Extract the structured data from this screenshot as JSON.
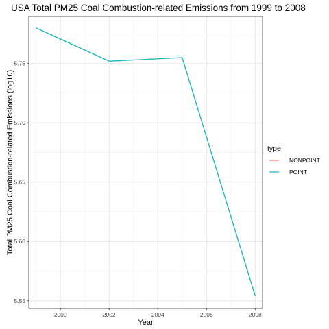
{
  "chart_data": {
    "type": "line",
    "title": "USA Total PM25 Coal Combustion-related Emissions from 1999 to 2008",
    "xlabel": "Year",
    "ylabel": "Total PM25 Coal Combustion-related Emissions (log10)",
    "xlim": [
      1998.7,
      2008.3
    ],
    "ylim": [
      5.5435,
      5.7897
    ],
    "x_ticks": [
      2000,
      2002,
      2004,
      2006,
      2008
    ],
    "y_ticks": [
      5.55,
      5.6,
      5.65,
      5.7,
      5.75
    ],
    "y_tick_labels": [
      "5.55",
      "5.60",
      "5.65",
      "5.70",
      "5.75"
    ],
    "x": [
      1999,
      2002,
      2005,
      2008
    ],
    "series": [
      {
        "name": "NONPOINT",
        "color": "#F8766D",
        "values": [
          5.78,
          5.752,
          5.755,
          5.554
        ]
      },
      {
        "name": "POINT",
        "color": "#00BFC4",
        "values": [
          5.78,
          5.752,
          5.755,
          5.554
        ]
      }
    ],
    "legend": {
      "title": "type",
      "placement": "right"
    },
    "grid": true
  }
}
